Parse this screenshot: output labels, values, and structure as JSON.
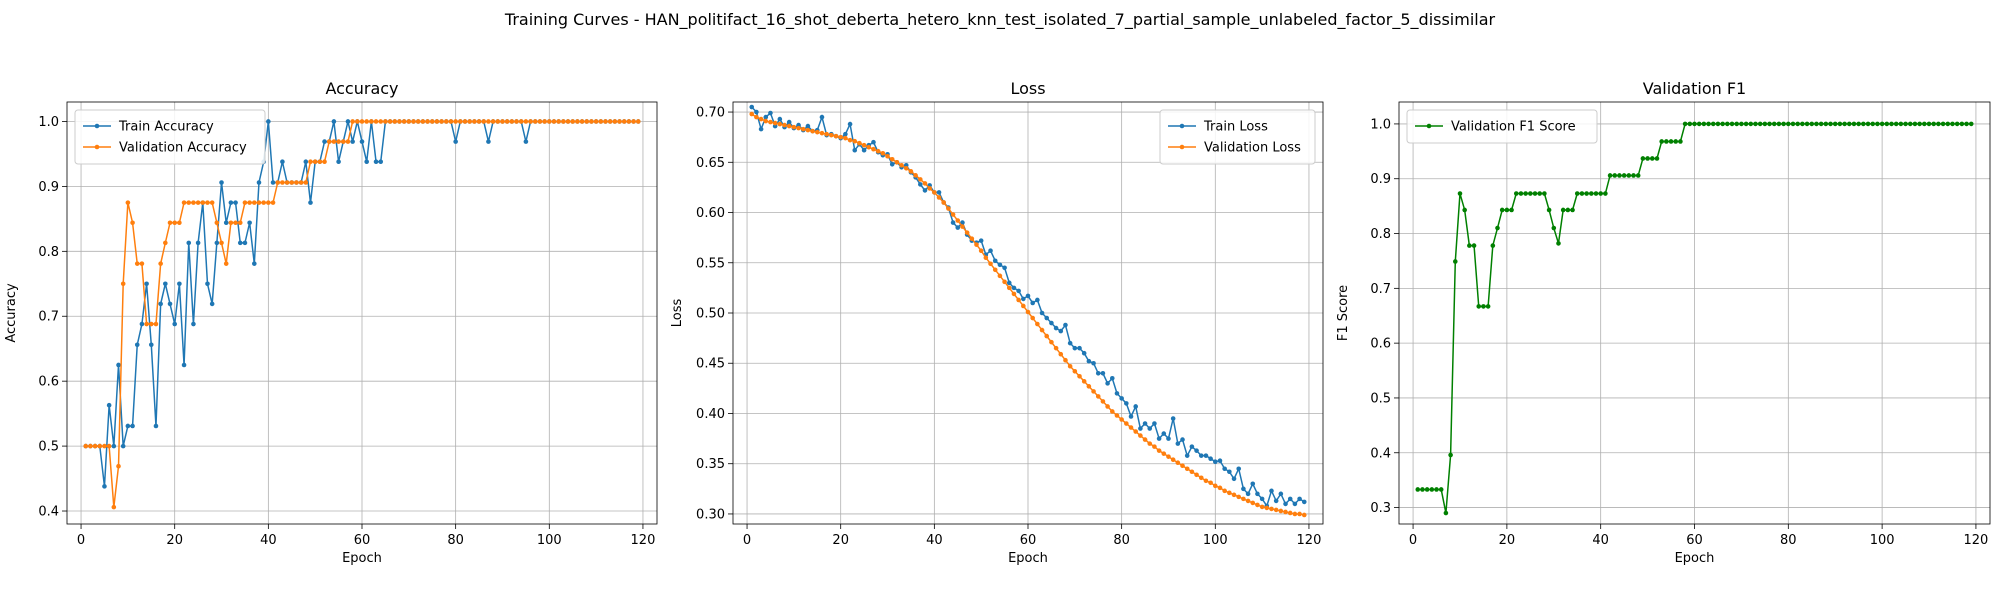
{
  "figure": {
    "suptitle": "Training Curves - HAN_politifact_16_shot_deberta_hetero_knn_test_isolated_7_partial_sample_unlabeled_factor_5_dissimilar"
  },
  "colors": {
    "blue": "#1f77b4",
    "orange": "#ff7f0e",
    "green": "#008000",
    "grid": "#b0b0b0"
  },
  "chart_data": [
    {
      "type": "line",
      "title": "Accuracy",
      "xlabel": "Epoch",
      "ylabel": "Accuracy",
      "xlim": [
        -3,
        123
      ],
      "ylim": [
        0.38,
        1.03
      ],
      "xticks": [
        0,
        20,
        40,
        60,
        80,
        100,
        120
      ],
      "yticks": [
        0.4,
        0.5,
        0.6,
        0.7,
        0.8,
        0.9,
        1.0
      ],
      "tick_format": 1,
      "grid": true,
      "legend": "top-left",
      "x": [
        1,
        2,
        3,
        4,
        5,
        6,
        7,
        8,
        9,
        10,
        11,
        12,
        13,
        14,
        15,
        16,
        17,
        18,
        19,
        20,
        21,
        22,
        23,
        24,
        25,
        26,
        27,
        28,
        29,
        30,
        31,
        32,
        33,
        34,
        35,
        36,
        37,
        38,
        39,
        40,
        41,
        42,
        43,
        44,
        45,
        46,
        47,
        48,
        49,
        50,
        51,
        52,
        53,
        54,
        55,
        56,
        57,
        58,
        59,
        60,
        61,
        62,
        63,
        64,
        65,
        66,
        67,
        68,
        69,
        70,
        71,
        72,
        73,
        74,
        75,
        76,
        77,
        78,
        79,
        80,
        81,
        82,
        83,
        84,
        85,
        86,
        87,
        88,
        89,
        90,
        91,
        92,
        93,
        94,
        95,
        96,
        97,
        98,
        99,
        100,
        101,
        102,
        103,
        104,
        105,
        106,
        107,
        108,
        109,
        110,
        111,
        112,
        113,
        114,
        115,
        116,
        117,
        118,
        119
      ],
      "series": [
        {
          "name": "Train Accuracy",
          "color": "#1f77b4",
          "values": [
            0.5,
            0.5,
            0.5,
            0.5,
            0.438,
            0.563,
            0.5,
            0.625,
            0.5,
            0.531,
            0.531,
            0.656,
            0.688,
            0.75,
            0.656,
            0.531,
            0.719,
            0.75,
            0.719,
            0.688,
            0.75,
            0.625,
            0.813,
            0.688,
            0.813,
            0.875,
            0.75,
            0.719,
            0.813,
            0.906,
            0.844,
            0.875,
            0.875,
            0.813,
            0.813,
            0.844,
            0.781,
            0.906,
            0.938,
            1.0,
            0.906,
            0.906,
            0.938,
            0.906,
            0.906,
            0.906,
            0.906,
            0.938,
            0.875,
            0.938,
            0.938,
            0.969,
            0.969,
            1.0,
            0.938,
            0.969,
            1.0,
            0.969,
            1.0,
            0.969,
            0.938,
            1.0,
            0.938,
            0.938,
            1.0,
            1.0,
            1.0,
            1.0,
            1.0,
            1.0,
            1.0,
            1.0,
            1.0,
            1.0,
            1.0,
            1.0,
            1.0,
            1.0,
            1.0,
            0.969,
            1.0,
            1.0,
            1.0,
            1.0,
            1.0,
            1.0,
            0.969,
            1.0,
            1.0,
            1.0,
            1.0,
            1.0,
            1.0,
            1.0,
            0.969,
            1.0,
            1.0,
            1.0,
            1.0,
            1.0,
            1.0,
            1.0,
            1.0,
            1.0,
            1.0,
            1.0,
            1.0,
            1.0,
            1.0,
            1.0,
            1.0,
            1.0,
            1.0,
            1.0,
            1.0,
            1.0,
            1.0,
            1.0,
            1.0
          ]
        },
        {
          "name": "Validation Accuracy",
          "color": "#ff7f0e",
          "values": [
            0.5,
            0.5,
            0.5,
            0.5,
            0.5,
            0.5,
            0.406,
            0.469,
            0.75,
            0.875,
            0.844,
            0.781,
            0.781,
            0.688,
            0.688,
            0.688,
            0.781,
            0.813,
            0.844,
            0.844,
            0.844,
            0.875,
            0.875,
            0.875,
            0.875,
            0.875,
            0.875,
            0.875,
            0.844,
            0.813,
            0.781,
            0.844,
            0.844,
            0.844,
            0.875,
            0.875,
            0.875,
            0.875,
            0.875,
            0.875,
            0.875,
            0.906,
            0.906,
            0.906,
            0.906,
            0.906,
            0.906,
            0.906,
            0.938,
            0.938,
            0.938,
            0.938,
            0.969,
            0.969,
            0.969,
            0.969,
            0.969,
            1.0,
            1.0,
            1.0,
            1.0,
            1.0,
            1.0,
            1.0,
            1.0,
            1.0,
            1.0,
            1.0,
            1.0,
            1.0,
            1.0,
            1.0,
            1.0,
            1.0,
            1.0,
            1.0,
            1.0,
            1.0,
            1.0,
            1.0,
            1.0,
            1.0,
            1.0,
            1.0,
            1.0,
            1.0,
            1.0,
            1.0,
            1.0,
            1.0,
            1.0,
            1.0,
            1.0,
            1.0,
            1.0,
            1.0,
            1.0,
            1.0,
            1.0,
            1.0,
            1.0,
            1.0,
            1.0,
            1.0,
            1.0,
            1.0,
            1.0,
            1.0,
            1.0,
            1.0,
            1.0,
            1.0,
            1.0,
            1.0,
            1.0,
            1.0,
            1.0,
            1.0,
            1.0
          ]
        }
      ]
    },
    {
      "type": "line",
      "title": "Loss",
      "xlabel": "Epoch",
      "ylabel": "Loss",
      "xlim": [
        -3,
        123
      ],
      "ylim": [
        0.29,
        0.71
      ],
      "xticks": [
        0,
        20,
        40,
        60,
        80,
        100,
        120
      ],
      "yticks": [
        0.3,
        0.35,
        0.4,
        0.45,
        0.5,
        0.55,
        0.6,
        0.65,
        0.7
      ],
      "tick_format": 2,
      "grid": true,
      "legend": "top-right",
      "x": [
        1,
        2,
        3,
        4,
        5,
        6,
        7,
        8,
        9,
        10,
        11,
        12,
        13,
        14,
        15,
        16,
        17,
        18,
        19,
        20,
        21,
        22,
        23,
        24,
        25,
        26,
        27,
        28,
        29,
        30,
        31,
        32,
        33,
        34,
        35,
        36,
        37,
        38,
        39,
        40,
        41,
        42,
        43,
        44,
        45,
        46,
        47,
        48,
        49,
        50,
        51,
        52,
        53,
        54,
        55,
        56,
        57,
        58,
        59,
        60,
        61,
        62,
        63,
        64,
        65,
        66,
        67,
        68,
        69,
        70,
        71,
        72,
        73,
        74,
        75,
        76,
        77,
        78,
        79,
        80,
        81,
        82,
        83,
        84,
        85,
        86,
        87,
        88,
        89,
        90,
        91,
        92,
        93,
        94,
        95,
        96,
        97,
        98,
        99,
        100,
        101,
        102,
        103,
        104,
        105,
        106,
        107,
        108,
        109,
        110,
        111,
        112,
        113,
        114,
        115,
        116,
        117,
        118,
        119
      ],
      "series": [
        {
          "name": "Train Loss",
          "color": "#1f77b4",
          "values": [
            0.705,
            0.7,
            0.683,
            0.695,
            0.699,
            0.686,
            0.693,
            0.685,
            0.69,
            0.684,
            0.687,
            0.682,
            0.686,
            0.681,
            0.682,
            0.695,
            0.677,
            0.678,
            0.676,
            0.674,
            0.678,
            0.688,
            0.662,
            0.668,
            0.662,
            0.667,
            0.67,
            0.66,
            0.657,
            0.658,
            0.648,
            0.65,
            0.645,
            0.647,
            0.64,
            0.635,
            0.628,
            0.622,
            0.627,
            0.62,
            0.62,
            0.61,
            0.605,
            0.59,
            0.585,
            0.59,
            0.578,
            0.572,
            0.57,
            0.572,
            0.558,
            0.562,
            0.552,
            0.548,
            0.545,
            0.53,
            0.525,
            0.522,
            0.514,
            0.517,
            0.51,
            0.513,
            0.5,
            0.495,
            0.49,
            0.485,
            0.482,
            0.488,
            0.47,
            0.465,
            0.465,
            0.46,
            0.452,
            0.45,
            0.44,
            0.44,
            0.43,
            0.435,
            0.42,
            0.415,
            0.41,
            0.397,
            0.407,
            0.385,
            0.39,
            0.385,
            0.39,
            0.375,
            0.38,
            0.375,
            0.395,
            0.37,
            0.374,
            0.358,
            0.367,
            0.363,
            0.358,
            0.358,
            0.355,
            0.352,
            0.353,
            0.345,
            0.342,
            0.335,
            0.345,
            0.325,
            0.32,
            0.33,
            0.32,
            0.315,
            0.308,
            0.323,
            0.313,
            0.32,
            0.31,
            0.315,
            0.31,
            0.315,
            0.312
          ]
        },
        {
          "name": "Validation Loss",
          "color": "#ff7f0e",
          "values": [
            0.698,
            0.695,
            0.693,
            0.691,
            0.69,
            0.689,
            0.688,
            0.687,
            0.686,
            0.685,
            0.684,
            0.683,
            0.682,
            0.681,
            0.68,
            0.679,
            0.678,
            0.677,
            0.676,
            0.675,
            0.674,
            0.672,
            0.671,
            0.669,
            0.667,
            0.665,
            0.663,
            0.661,
            0.659,
            0.656,
            0.653,
            0.65,
            0.647,
            0.644,
            0.641,
            0.637,
            0.633,
            0.629,
            0.624,
            0.62,
            0.615,
            0.61,
            0.604,
            0.598,
            0.592,
            0.586,
            0.58,
            0.574,
            0.568,
            0.562,
            0.555,
            0.549,
            0.543,
            0.537,
            0.531,
            0.525,
            0.519,
            0.513,
            0.507,
            0.501,
            0.495,
            0.489,
            0.483,
            0.477,
            0.471,
            0.465,
            0.459,
            0.453,
            0.447,
            0.442,
            0.437,
            0.432,
            0.427,
            0.422,
            0.417,
            0.412,
            0.407,
            0.402,
            0.398,
            0.394,
            0.39,
            0.386,
            0.382,
            0.378,
            0.374,
            0.37,
            0.367,
            0.363,
            0.36,
            0.357,
            0.354,
            0.351,
            0.348,
            0.345,
            0.342,
            0.339,
            0.336,
            0.333,
            0.331,
            0.328,
            0.326,
            0.323,
            0.321,
            0.319,
            0.317,
            0.315,
            0.313,
            0.311,
            0.309,
            0.307,
            0.306,
            0.305,
            0.304,
            0.303,
            0.302,
            0.301,
            0.3,
            0.3,
            0.299
          ]
        }
      ]
    },
    {
      "type": "line",
      "title": "Validation F1",
      "xlabel": "Epoch",
      "ylabel": "F1 Score",
      "xlim": [
        -3,
        123
      ],
      "ylim": [
        0.27,
        1.04
      ],
      "xticks": [
        0,
        20,
        40,
        60,
        80,
        100,
        120
      ],
      "yticks": [
        0.3,
        0.4,
        0.5,
        0.6,
        0.7,
        0.8,
        0.9,
        1.0
      ],
      "tick_format": 1,
      "grid": true,
      "legend": "top-left",
      "x": [
        1,
        2,
        3,
        4,
        5,
        6,
        7,
        8,
        9,
        10,
        11,
        12,
        13,
        14,
        15,
        16,
        17,
        18,
        19,
        20,
        21,
        22,
        23,
        24,
        25,
        26,
        27,
        28,
        29,
        30,
        31,
        32,
        33,
        34,
        35,
        36,
        37,
        38,
        39,
        40,
        41,
        42,
        43,
        44,
        45,
        46,
        47,
        48,
        49,
        50,
        51,
        52,
        53,
        54,
        55,
        56,
        57,
        58,
        59,
        60,
        61,
        62,
        63,
        64,
        65,
        66,
        67,
        68,
        69,
        70,
        71,
        72,
        73,
        74,
        75,
        76,
        77,
        78,
        79,
        80,
        81,
        82,
        83,
        84,
        85,
        86,
        87,
        88,
        89,
        90,
        91,
        92,
        93,
        94,
        95,
        96,
        97,
        98,
        99,
        100,
        101,
        102,
        103,
        104,
        105,
        106,
        107,
        108,
        109,
        110,
        111,
        112,
        113,
        114,
        115,
        116,
        117,
        118,
        119
      ],
      "series": [
        {
          "name": "Validation F1 Score",
          "color": "#008000",
          "values": [
            0.333,
            0.333,
            0.333,
            0.333,
            0.333,
            0.333,
            0.29,
            0.396,
            0.749,
            0.873,
            0.843,
            0.778,
            0.778,
            0.667,
            0.667,
            0.667,
            0.778,
            0.81,
            0.843,
            0.843,
            0.843,
            0.873,
            0.873,
            0.873,
            0.873,
            0.873,
            0.873,
            0.873,
            0.843,
            0.81,
            0.782,
            0.843,
            0.843,
            0.843,
            0.873,
            0.873,
            0.873,
            0.873,
            0.873,
            0.873,
            0.873,
            0.906,
            0.906,
            0.906,
            0.906,
            0.906,
            0.906,
            0.906,
            0.937,
            0.937,
            0.937,
            0.937,
            0.968,
            0.968,
            0.968,
            0.968,
            0.968,
            1.0,
            1.0,
            1.0,
            1.0,
            1.0,
            1.0,
            1.0,
            1.0,
            1.0,
            1.0,
            1.0,
            1.0,
            1.0,
            1.0,
            1.0,
            1.0,
            1.0,
            1.0,
            1.0,
            1.0,
            1.0,
            1.0,
            1.0,
            1.0,
            1.0,
            1.0,
            1.0,
            1.0,
            1.0,
            1.0,
            1.0,
            1.0,
            1.0,
            1.0,
            1.0,
            1.0,
            1.0,
            1.0,
            1.0,
            1.0,
            1.0,
            1.0,
            1.0,
            1.0,
            1.0,
            1.0,
            1.0,
            1.0,
            1.0,
            1.0,
            1.0,
            1.0,
            1.0,
            1.0,
            1.0,
            1.0,
            1.0,
            1.0,
            1.0,
            1.0,
            1.0,
            1.0
          ]
        }
      ]
    }
  ]
}
